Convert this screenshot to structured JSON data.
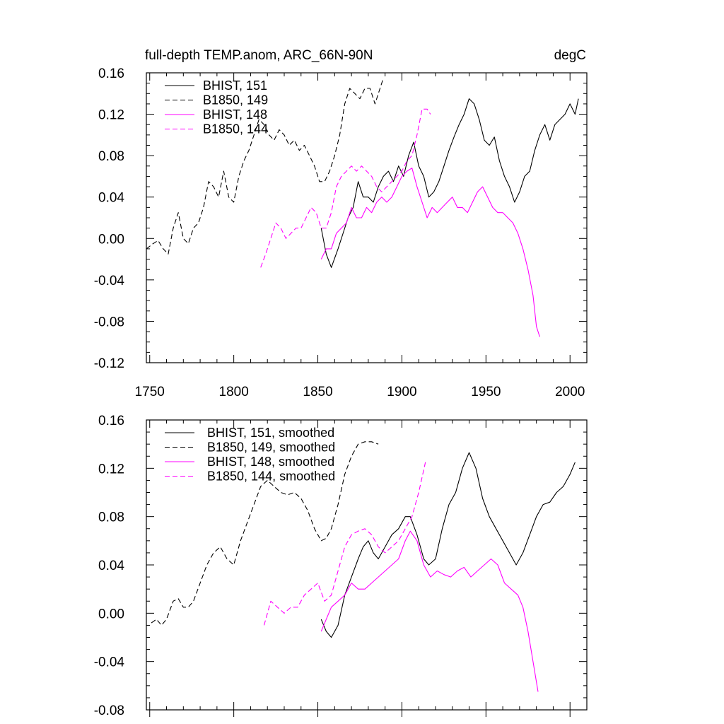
{
  "chart_data": [
    {
      "type": "line",
      "title": "full-depth TEMP.anom, ARC_66N-90N",
      "units": "degC",
      "xlabel": "",
      "ylabel": "",
      "xlim": [
        1748,
        2010
      ],
      "ylim": [
        -0.12,
        0.16
      ],
      "xticks": [
        1750,
        1800,
        1850,
        1900,
        1950,
        2000
      ],
      "yticks": [
        -0.12,
        -0.08,
        -0.04,
        0.0,
        0.04,
        0.08,
        0.12,
        0.16
      ],
      "ytick_labels": [
        "-0.12",
        "-0.08",
        "-0.04",
        "0.00",
        "0.04",
        "0.08",
        "0.12",
        "0.16"
      ],
      "xtick_labels": [
        "1750",
        "1800",
        "1850",
        "1900",
        "1950",
        "2000"
      ],
      "legend_position": "top-left",
      "series": [
        {
          "name": "BHIST, 151",
          "color": "#000000",
          "dash": "solid",
          "x": [
            1852,
            1855,
            1858,
            1862,
            1865,
            1868,
            1871,
            1874,
            1877,
            1880,
            1883,
            1886,
            1889,
            1892,
            1895,
            1898,
            1901,
            1904,
            1907,
            1910,
            1913,
            1916,
            1919,
            1922,
            1925,
            1928,
            1931,
            1934,
            1937,
            1940,
            1943,
            1946,
            1949,
            1952,
            1955,
            1958,
            1961,
            1964,
            1967,
            1970,
            1973,
            1976,
            1979,
            1982,
            1985,
            1988,
            1991,
            1994,
            1997,
            2000,
            2003,
            2005
          ],
          "y": [
            0.01,
            -0.015,
            -0.028,
            -0.01,
            0.005,
            0.02,
            0.03,
            0.055,
            0.04,
            0.04,
            0.035,
            0.05,
            0.06,
            0.065,
            0.055,
            0.07,
            0.06,
            0.08,
            0.093,
            0.07,
            0.06,
            0.04,
            0.045,
            0.055,
            0.07,
            0.085,
            0.098,
            0.11,
            0.12,
            0.135,
            0.13,
            0.115,
            0.095,
            0.09,
            0.098,
            0.075,
            0.06,
            0.05,
            0.035,
            0.045,
            0.06,
            0.065,
            0.085,
            0.1,
            0.11,
            0.095,
            0.11,
            0.115,
            0.12,
            0.13,
            0.12,
            0.135
          ]
        },
        {
          "name": "B1850, 149",
          "color": "#000000",
          "dash": "dashed",
          "x": [
            1748,
            1752,
            1755,
            1758,
            1761,
            1764,
            1767,
            1770,
            1773,
            1776,
            1779,
            1782,
            1785,
            1788,
            1791,
            1794,
            1797,
            1800,
            1803,
            1806,
            1809,
            1812,
            1815,
            1818,
            1821,
            1824,
            1827,
            1830,
            1833,
            1836,
            1839,
            1842,
            1845,
            1848,
            1851,
            1854,
            1857,
            1860,
            1863,
            1866,
            1869,
            1872,
            1875,
            1878,
            1881,
            1884,
            1887,
            1889
          ],
          "y": [
            -0.01,
            -0.005,
            -0.002,
            -0.01,
            -0.015,
            0.01,
            0.025,
            0.0,
            -0.005,
            0.01,
            0.015,
            0.03,
            0.055,
            0.05,
            0.04,
            0.065,
            0.04,
            0.035,
            0.06,
            0.075,
            0.085,
            0.1,
            0.115,
            0.11,
            0.1,
            0.095,
            0.105,
            0.1,
            0.09,
            0.095,
            0.085,
            0.09,
            0.08,
            0.07,
            0.055,
            0.055,
            0.065,
            0.08,
            0.1,
            0.13,
            0.145,
            0.14,
            0.135,
            0.145,
            0.145,
            0.13,
            0.145,
            0.155
          ]
        },
        {
          "name": "BHIST, 148",
          "color": "#ff00ff",
          "dash": "solid",
          "x": [
            1852,
            1855,
            1858,
            1861,
            1864,
            1867,
            1870,
            1873,
            1876,
            1879,
            1882,
            1885,
            1888,
            1891,
            1894,
            1897,
            1900,
            1903,
            1906,
            1909,
            1912,
            1915,
            1918,
            1921,
            1924,
            1927,
            1930,
            1933,
            1936,
            1939,
            1942,
            1945,
            1948,
            1951,
            1954,
            1957,
            1960,
            1963,
            1966,
            1969,
            1972,
            1975,
            1978,
            1980,
            1982
          ],
          "y": [
            -0.02,
            -0.01,
            -0.01,
            0.005,
            0.01,
            0.015,
            0.03,
            0.02,
            0.02,
            0.03,
            0.025,
            0.035,
            0.04,
            0.035,
            0.04,
            0.05,
            0.06,
            0.065,
            0.068,
            0.05,
            0.035,
            0.02,
            0.03,
            0.025,
            0.03,
            0.035,
            0.04,
            0.03,
            0.03,
            0.025,
            0.035,
            0.045,
            0.05,
            0.04,
            0.03,
            0.025,
            0.025,
            0.02,
            0.015,
            0.005,
            -0.01,
            -0.03,
            -0.055,
            -0.085,
            -0.095
          ]
        },
        {
          "name": "B1850, 144",
          "color": "#ff00ff",
          "dash": "dashed",
          "x": [
            1816,
            1819,
            1822,
            1825,
            1828,
            1831,
            1834,
            1837,
            1840,
            1843,
            1846,
            1849,
            1852,
            1855,
            1858,
            1861,
            1864,
            1867,
            1870,
            1873,
            1876,
            1879,
            1882,
            1885,
            1888,
            1891,
            1894,
            1897,
            1900,
            1903,
            1906,
            1909,
            1912,
            1915,
            1917
          ],
          "y": [
            -0.028,
            -0.015,
            0.0,
            0.015,
            0.01,
            0.0,
            0.005,
            0.01,
            0.01,
            0.02,
            0.03,
            0.025,
            0.01,
            0.01,
            0.025,
            0.05,
            0.06,
            0.065,
            0.07,
            0.065,
            0.07,
            0.065,
            0.06,
            0.05,
            0.045,
            0.05,
            0.055,
            0.06,
            0.065,
            0.075,
            0.08,
            0.1,
            0.125,
            0.125,
            0.12
          ]
        }
      ]
    },
    {
      "type": "line",
      "title": "",
      "xlabel": "",
      "ylabel": "",
      "xlim": [
        1748,
        2010
      ],
      "ylim": [
        -0.08,
        0.16
      ],
      "yticks": [
        -0.08,
        -0.04,
        0.0,
        0.04,
        0.08,
        0.12,
        0.16
      ],
      "ytick_labels": [
        "-0.08",
        "-0.04",
        "0.00",
        "0.04",
        "0.08",
        "0.12",
        "0.16"
      ],
      "legend_position": "top-left",
      "series": [
        {
          "name": "BHIST, 151, smoothed",
          "color": "#000000",
          "dash": "solid",
          "x": [
            1852,
            1855,
            1858,
            1862,
            1866,
            1870,
            1874,
            1877,
            1880,
            1883,
            1886,
            1890,
            1894,
            1898,
            1902,
            1905,
            1909,
            1913,
            1916,
            1920,
            1924,
            1928,
            1932,
            1936,
            1940,
            1944,
            1948,
            1952,
            1956,
            1960,
            1964,
            1968,
            1972,
            1976,
            1980,
            1984,
            1988,
            1992,
            1996,
            2000,
            2003
          ],
          "y": [
            -0.005,
            -0.015,
            -0.02,
            -0.01,
            0.015,
            0.03,
            0.045,
            0.055,
            0.06,
            0.05,
            0.045,
            0.055,
            0.065,
            0.07,
            0.08,
            0.08,
            0.065,
            0.045,
            0.04,
            0.045,
            0.07,
            0.09,
            0.1,
            0.12,
            0.133,
            0.12,
            0.095,
            0.08,
            0.07,
            0.06,
            0.05,
            0.04,
            0.05,
            0.065,
            0.08,
            0.09,
            0.092,
            0.1,
            0.105,
            0.115,
            0.125
          ]
        },
        {
          "name": "B1850, 149, smoothed",
          "color": "#000000",
          "dash": "dashed",
          "x": [
            1751,
            1754,
            1757,
            1760,
            1764,
            1767,
            1770,
            1773,
            1776,
            1780,
            1784,
            1788,
            1792,
            1796,
            1800,
            1804,
            1808,
            1812,
            1816,
            1820,
            1824,
            1828,
            1832,
            1836,
            1840,
            1844,
            1848,
            1852,
            1855,
            1858,
            1862,
            1866,
            1870,
            1874,
            1878,
            1882,
            1886
          ],
          "y": [
            -0.008,
            -0.005,
            -0.01,
            -0.005,
            0.01,
            0.012,
            0.005,
            0.005,
            0.01,
            0.025,
            0.04,
            0.05,
            0.055,
            0.045,
            0.04,
            0.06,
            0.075,
            0.09,
            0.105,
            0.11,
            0.105,
            0.1,
            0.098,
            0.1,
            0.095,
            0.085,
            0.07,
            0.06,
            0.062,
            0.07,
            0.09,
            0.115,
            0.13,
            0.14,
            0.142,
            0.142,
            0.14
          ]
        },
        {
          "name": "BHIST, 148, smoothed",
          "color": "#ff00ff",
          "dash": "solid",
          "x": [
            1852,
            1855,
            1858,
            1862,
            1866,
            1870,
            1874,
            1878,
            1882,
            1886,
            1890,
            1894,
            1898,
            1902,
            1905,
            1909,
            1913,
            1917,
            1921,
            1925,
            1929,
            1933,
            1937,
            1941,
            1945,
            1949,
            1953,
            1957,
            1961,
            1965,
            1969,
            1972,
            1975,
            1978,
            1981
          ],
          "y": [
            -0.015,
            -0.005,
            0.005,
            0.01,
            0.015,
            0.025,
            0.02,
            0.02,
            0.025,
            0.03,
            0.035,
            0.04,
            0.045,
            0.06,
            0.068,
            0.06,
            0.04,
            0.03,
            0.035,
            0.032,
            0.03,
            0.035,
            0.038,
            0.03,
            0.035,
            0.04,
            0.045,
            0.04,
            0.025,
            0.02,
            0.015,
            0.005,
            -0.015,
            -0.04,
            -0.065
          ]
        },
        {
          "name": "B1850, 144, smoothed",
          "color": "#ff00ff",
          "dash": "dashed",
          "x": [
            1818,
            1822,
            1826,
            1830,
            1834,
            1838,
            1842,
            1846,
            1850,
            1854,
            1858,
            1862,
            1866,
            1870,
            1874,
            1878,
            1882,
            1886,
            1890,
            1894,
            1898,
            1902,
            1906,
            1910,
            1914
          ],
          "y": [
            -0.01,
            0.01,
            0.005,
            0.0,
            0.005,
            0.005,
            0.015,
            0.02,
            0.025,
            0.01,
            0.015,
            0.035,
            0.055,
            0.065,
            0.068,
            0.07,
            0.065,
            0.055,
            0.05,
            0.055,
            0.06,
            0.07,
            0.08,
            0.1,
            0.125
          ]
        }
      ]
    }
  ]
}
